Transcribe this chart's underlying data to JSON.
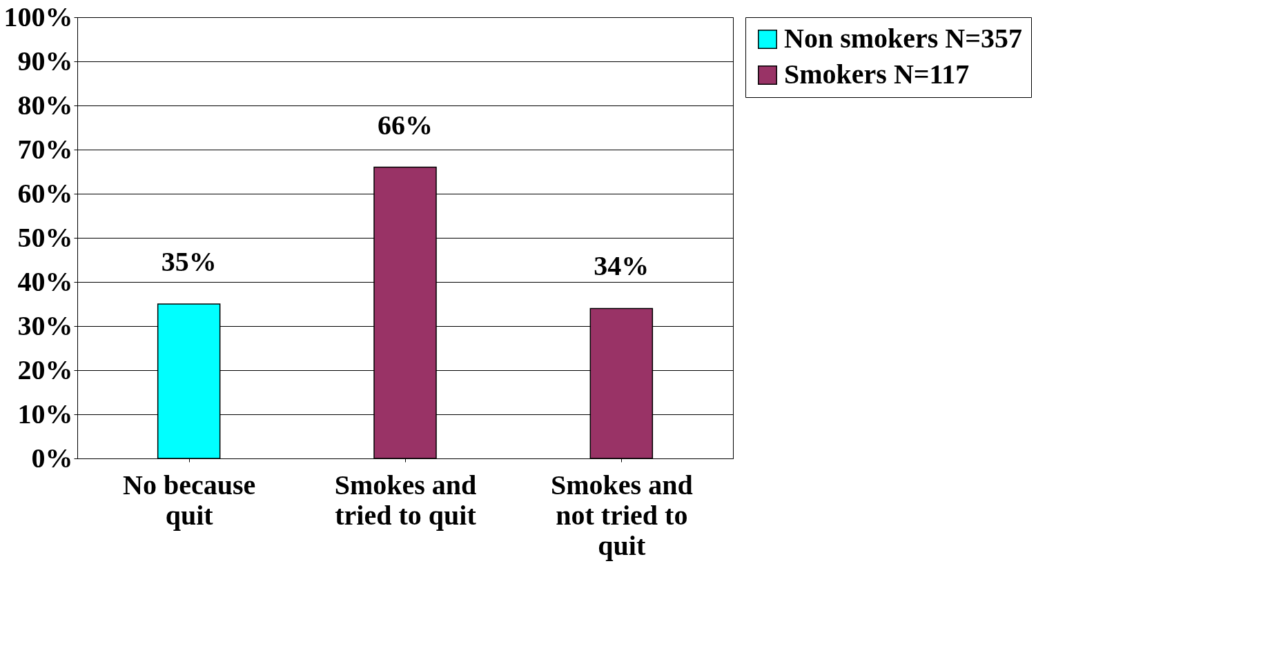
{
  "chart_data": {
    "type": "bar",
    "categories": [
      "No because\nquit",
      "Smokes and\ntried to quit",
      "Smokes and\nnot tried to\nquit"
    ],
    "series": [
      {
        "name": "Non smokers N=357",
        "color": "#00ffff",
        "values": [
          35,
          null,
          null
        ],
        "value_labels": [
          "35%",
          null,
          null
        ]
      },
      {
        "name": "Smokers N=117",
        "color": "#993366",
        "values": [
          null,
          66,
          34
        ],
        "value_labels": [
          null,
          "66%",
          "34%"
        ]
      }
    ],
    "ylim": [
      0,
      100
    ],
    "yticks": [
      {
        "value": 0,
        "label": "0%"
      },
      {
        "value": 10,
        "label": "10%"
      },
      {
        "value": 20,
        "label": "20%"
      },
      {
        "value": 30,
        "label": "30%"
      },
      {
        "value": 40,
        "label": "40%"
      },
      {
        "value": 50,
        "label": "50%"
      },
      {
        "value": 60,
        "label": "60%"
      },
      {
        "value": 70,
        "label": "70%"
      },
      {
        "value": 80,
        "label": "80%"
      },
      {
        "value": 90,
        "label": "90%"
      },
      {
        "value": 100,
        "label": "100%"
      }
    ],
    "grid": "y",
    "legend": "right"
  }
}
